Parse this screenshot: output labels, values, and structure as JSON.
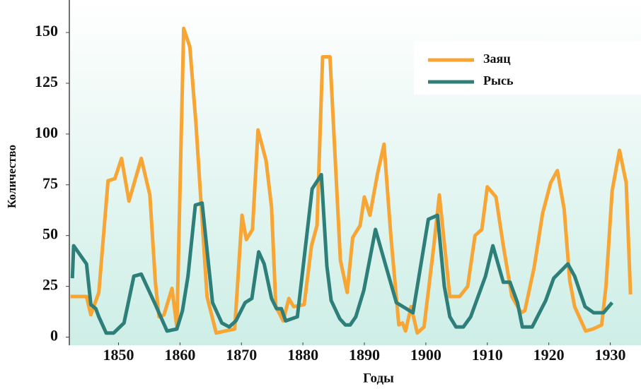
{
  "chart_data": {
    "type": "line",
    "xlabel": "Годы",
    "ylabel": "Количество",
    "xlim": [
      1842,
      1935
    ],
    "ylim": [
      -4,
      166
    ],
    "xticks": [
      1850,
      1860,
      1870,
      1880,
      1890,
      1900,
      1910,
      1920,
      1930
    ],
    "yticks": [
      0,
      25,
      50,
      75,
      100,
      125,
      150
    ],
    "legend": "upper right",
    "series": [
      {
        "name": "Заяц",
        "color": "#f7a535",
        "x": [
          1842.2,
          1844.8,
          1845.5,
          1846.8,
          1848.3,
          1849.4,
          1850.5,
          1851.7,
          1853.7,
          1855.1,
          1856.0,
          1856.6,
          1857.4,
          1858.7,
          1859.5,
          1860.6,
          1861.6,
          1862.6,
          1864.4,
          1865.9,
          1867.3,
          1868.9,
          1870.1,
          1870.8,
          1871.8,
          1872.7,
          1874.0,
          1874.9,
          1875.6,
          1876.8,
          1877.7,
          1878.5,
          1880.2,
          1881.4,
          1882.3,
          1883.2,
          1884.4,
          1886.1,
          1887.2,
          1888.1,
          1889.3,
          1890.0,
          1890.9,
          1892.1,
          1893.2,
          1894.3,
          1895.6,
          1896.2,
          1896.7,
          1897.6,
          1898.6,
          1899.7,
          1901.3,
          1902.2,
          1903.9,
          1905.5,
          1906.8,
          1908.0,
          1909.1,
          1910.0,
          1911.4,
          1912.6,
          1914.0,
          1915.5,
          1916.1,
          1917.6,
          1919.0,
          1920.3,
          1921.4,
          1922.5,
          1923.4,
          1924.2,
          1926.0,
          1927.2,
          1928.6,
          1929.3,
          1930.3,
          1931.5,
          1932.6,
          1933.3
        ],
        "values": [
          20,
          20,
          11,
          22,
          77,
          78,
          88,
          67,
          88,
          70,
          27,
          10,
          11,
          24,
          5,
          152,
          143,
          105,
          20,
          2,
          3,
          4,
          60,
          48,
          53,
          102,
          87,
          64,
          15,
          8,
          19,
          15,
          16,
          45,
          55,
          138,
          138,
          38,
          22,
          49,
          55,
          69,
          60,
          80,
          95,
          50,
          6,
          7,
          3,
          15,
          2,
          5,
          45,
          70,
          20,
          20,
          25,
          50,
          53,
          74,
          69,
          45,
          20,
          12,
          13,
          34,
          61,
          76,
          82,
          63,
          28,
          15,
          3,
          4,
          6,
          25,
          72,
          92,
          76,
          21
        ]
      },
      {
        "name": "Рысь",
        "color": "#2e7f7a",
        "x": [
          1842.5,
          1842.7,
          1844.8,
          1845.5,
          1846.3,
          1846.8,
          1848.0,
          1849.2,
          1850.9,
          1852.5,
          1853.7,
          1856.0,
          1857.9,
          1859.5,
          1860.4,
          1861.3,
          1862.5,
          1863.6,
          1865.3,
          1866.8,
          1868.0,
          1869.1,
          1870.6,
          1871.7,
          1872.8,
          1873.7,
          1874.9,
          1875.7,
          1876.5,
          1877.2,
          1879.1,
          1881.5,
          1883.0,
          1883.9,
          1884.6,
          1886.0,
          1886.9,
          1887.7,
          1888.6,
          1889.9,
          1891.8,
          1893.5,
          1895.2,
          1897.9,
          1900.4,
          1901.9,
          1903.0,
          1903.9,
          1904.9,
          1906.1,
          1907.3,
          1909.7,
          1910.9,
          1912.6,
          1913.7,
          1914.9,
          1915.7,
          1917.3,
          1919.5,
          1920.8,
          1923.1,
          1924.2,
          1925.9,
          1927.3,
          1928.9,
          1930.3
        ],
        "values": [
          29,
          45,
          36,
          16,
          14,
          10,
          2,
          2,
          7,
          30,
          31,
          16,
          3,
          4,
          13,
          30,
          65,
          66,
          17,
          7,
          5,
          8,
          17,
          19,
          42,
          36,
          19,
          14,
          14,
          8,
          10,
          73,
          80,
          35,
          18,
          9,
          6,
          6,
          10,
          23,
          53,
          35,
          17,
          12,
          58,
          60,
          25,
          10,
          5,
          5,
          10,
          30,
          45,
          27,
          27,
          17,
          5,
          5,
          18,
          29,
          36,
          30,
          15,
          12,
          12,
          17
        ]
      }
    ]
  }
}
